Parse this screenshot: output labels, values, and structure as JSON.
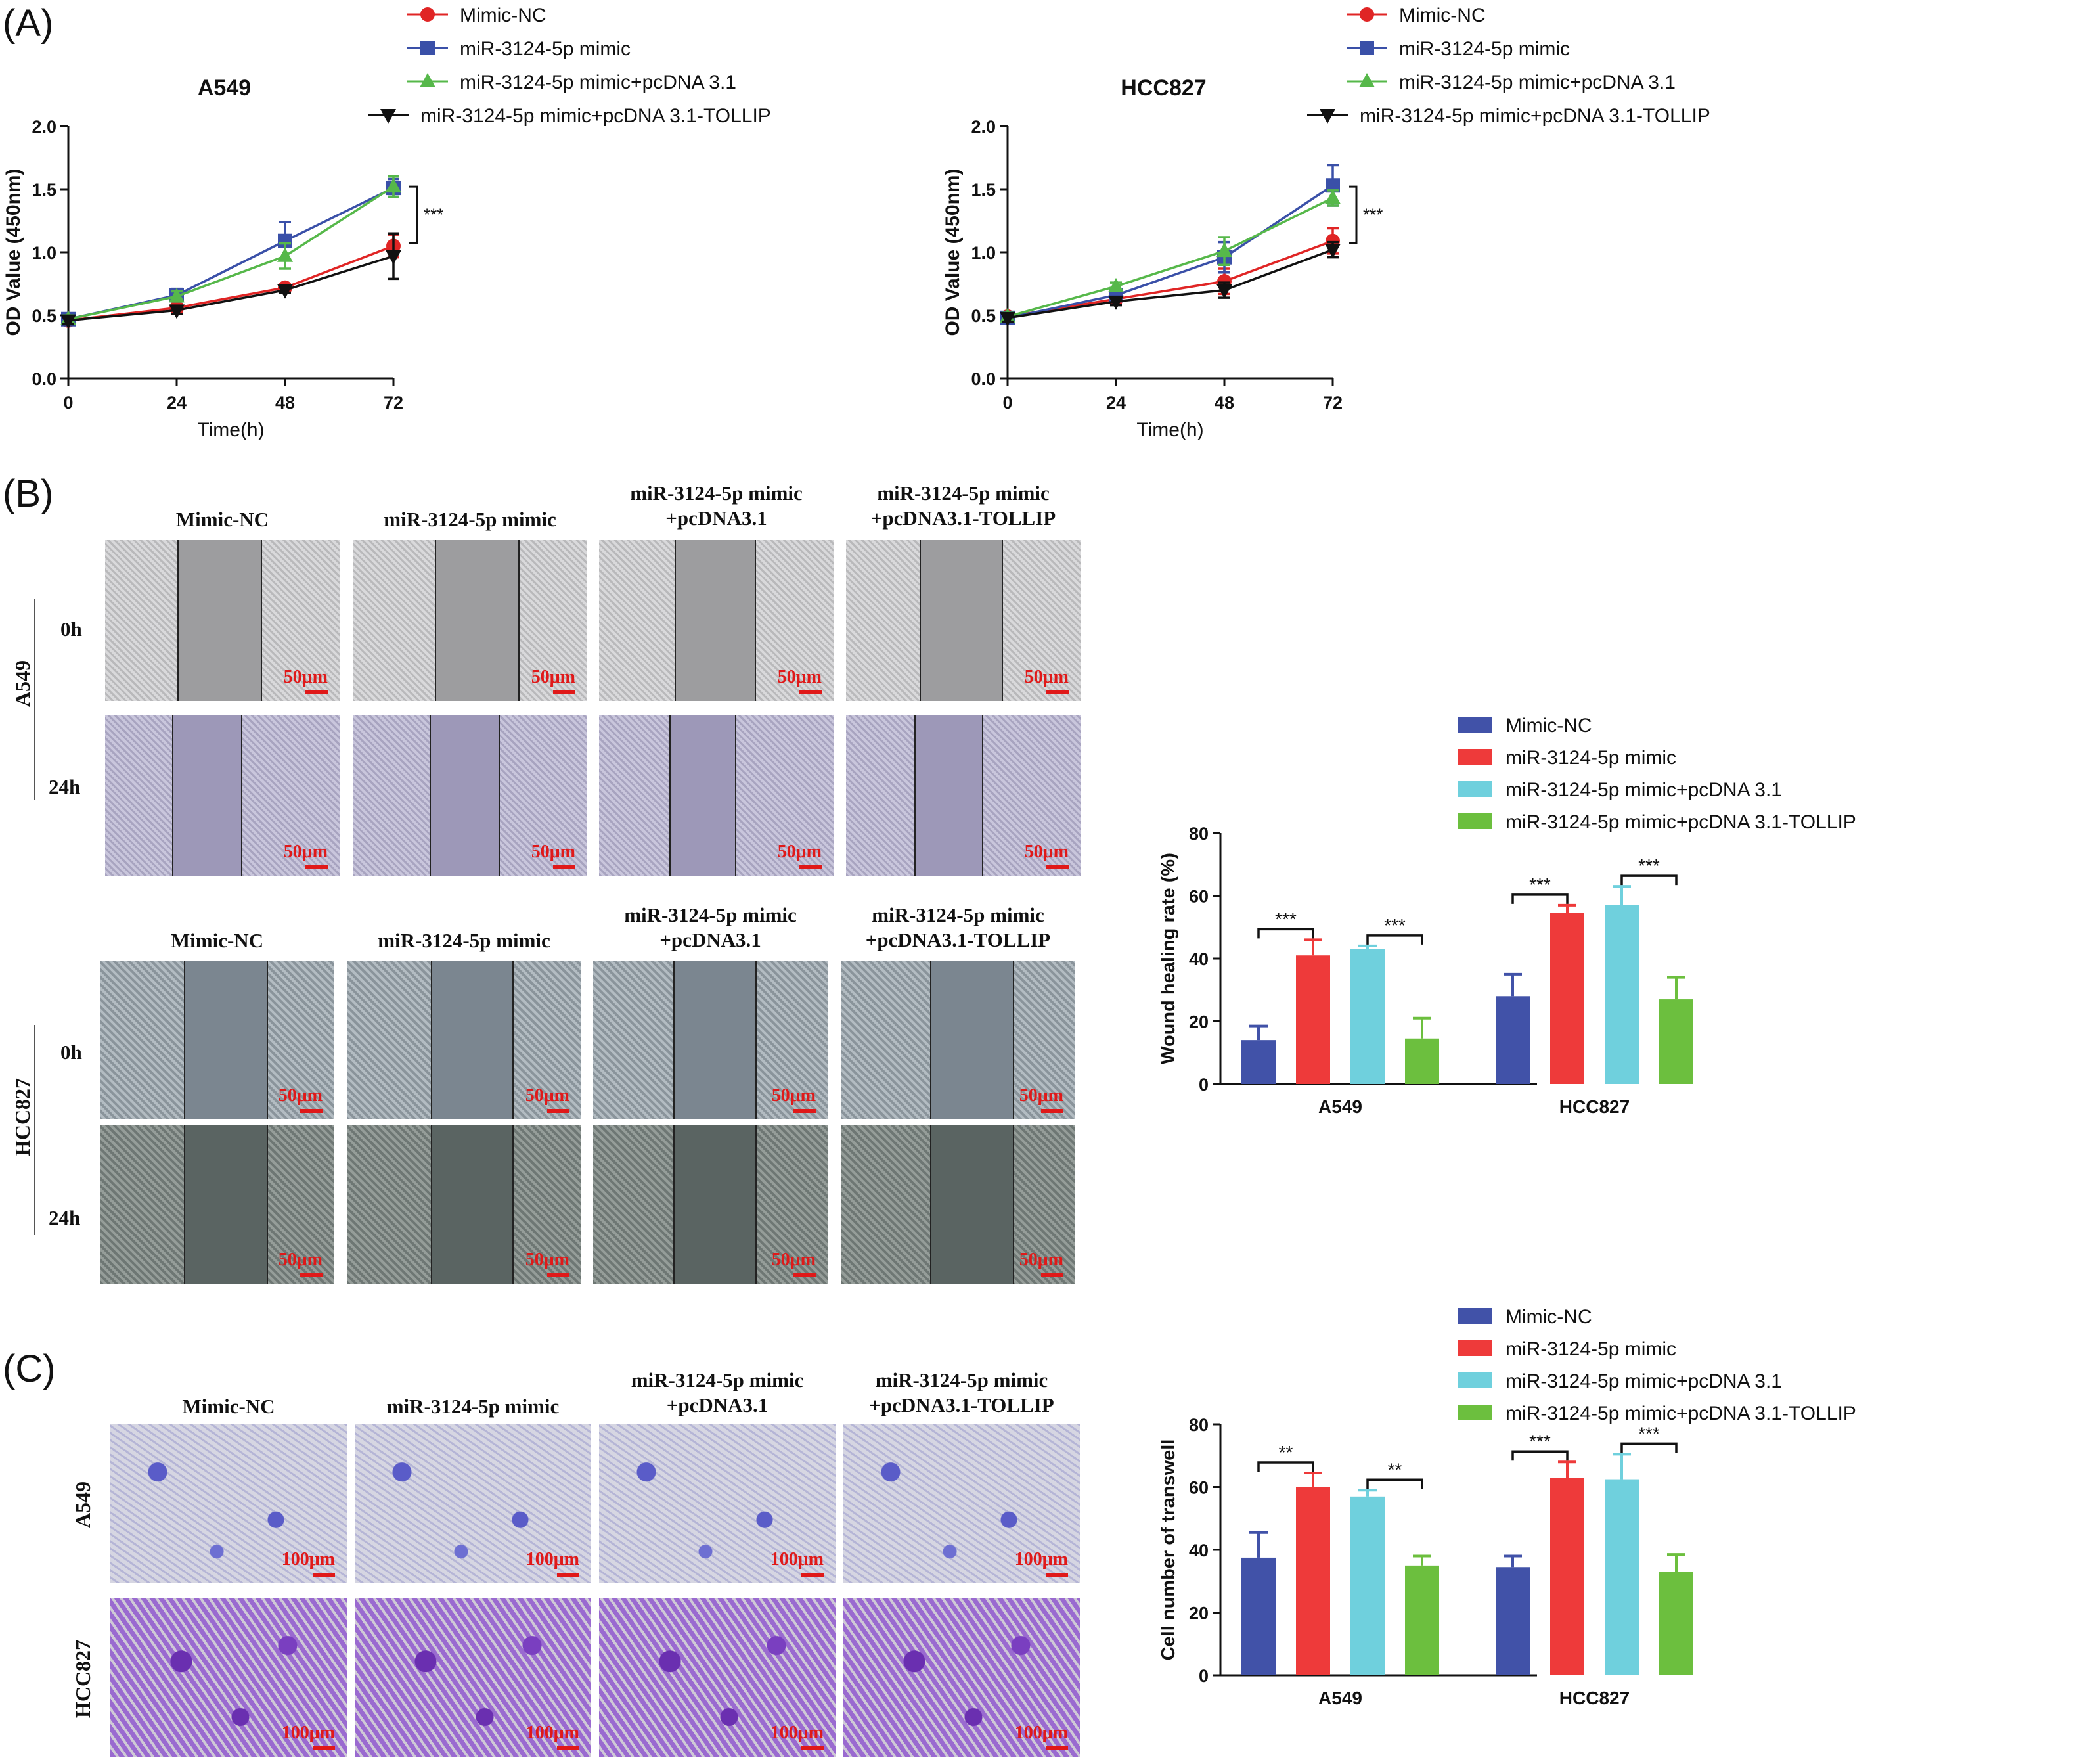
{
  "panels": {
    "a": "(A)",
    "b": "(B)",
    "c": "(C)"
  },
  "colors": {
    "mimic_nc_line": "#e02525",
    "mimic_line": "#3a50a8",
    "pcdna_line": "#56b84a",
    "tollip_line": "#111111",
    "bar_mimic_nc": "#4152a8",
    "bar_mimic": "#ee3a3a",
    "bar_pcdna": "#6fd0dd",
    "bar_tollip": "#6cbf3e",
    "scale_text": "#e01919"
  },
  "chart_data": [
    {
      "type": "line",
      "title": "A549",
      "xlabel": "Time(h)",
      "ylabel": "OD Value (450nm)",
      "x": [
        0,
        24,
        48,
        72
      ],
      "xticks": [
        "0",
        "24",
        "48",
        "72"
      ],
      "yticks": [
        "0.0",
        "0.5",
        "1.0",
        "1.5",
        "2.0"
      ],
      "ylim": [
        0,
        2.0
      ],
      "series": [
        {
          "name": "Mimic-NC",
          "values": [
            0.46,
            0.56,
            0.72,
            1.05
          ],
          "err": [
            0.03,
            0.03,
            0.02,
            0.09
          ],
          "marker": "circle"
        },
        {
          "name": "miR-3124-5p mimic",
          "values": [
            0.47,
            0.66,
            1.09,
            1.51
          ],
          "err": [
            0.03,
            0.05,
            0.15,
            0.07
          ],
          "marker": "square"
        },
        {
          "name": "miR-3124-5p mimic+pcDNA 3.1",
          "values": [
            0.47,
            0.65,
            0.97,
            1.52
          ],
          "err": [
            0.03,
            0.04,
            0.1,
            0.08
          ],
          "marker": "triangle"
        },
        {
          "name": "miR-3124-5p mimic+pcDNA 3.1-TOLLIP",
          "values": [
            0.46,
            0.54,
            0.7,
            0.97
          ],
          "err": [
            0.03,
            0.03,
            0.02,
            0.18
          ],
          "marker": "triangle-down"
        }
      ],
      "significance": "***"
    },
    {
      "type": "line",
      "title": "HCC827",
      "xlabel": "Time(h)",
      "ylabel": "OD Value (450nm)",
      "x": [
        0,
        24,
        48,
        72
      ],
      "xticks": [
        "0",
        "24",
        "48",
        "72"
      ],
      "yticks": [
        "0.0",
        "0.5",
        "1.0",
        "1.5",
        "2.0"
      ],
      "ylim": [
        0,
        2.0
      ],
      "series": [
        {
          "name": "Mimic-NC",
          "values": [
            0.49,
            0.63,
            0.77,
            1.09
          ],
          "err": [
            0.03,
            0.03,
            0.1,
            0.1
          ],
          "marker": "circle"
        },
        {
          "name": "miR-3124-5p mimic",
          "values": [
            0.48,
            0.66,
            0.96,
            1.53
          ],
          "err": [
            0.04,
            0.04,
            0.12,
            0.16
          ],
          "marker": "square"
        },
        {
          "name": "miR-3124-5p mimic+pcDNA 3.1",
          "values": [
            0.49,
            0.73,
            1.01,
            1.43
          ],
          "err": [
            0.03,
            0.03,
            0.11,
            0.06
          ],
          "marker": "triangle"
        },
        {
          "name": "miR-3124-5p mimic+pcDNA 3.1-TOLLIP",
          "values": [
            0.48,
            0.61,
            0.7,
            1.02
          ],
          "err": [
            0.03,
            0.03,
            0.06,
            0.06
          ],
          "marker": "triangle-down"
        }
      ],
      "significance": "***"
    },
    {
      "type": "bar",
      "ylabel": "Wound healing rate (%)",
      "categories": [
        "A549",
        "HCC827"
      ],
      "yticks": [
        "0",
        "20",
        "40",
        "60",
        "80"
      ],
      "ylim": [
        0,
        80
      ],
      "series": [
        {
          "name": "Mimic-NC",
          "values": [
            14,
            28
          ],
          "err": [
            4.5,
            7
          ]
        },
        {
          "name": "miR-3124-5p mimic",
          "values": [
            41,
            54.5
          ],
          "err": [
            5,
            2.5
          ]
        },
        {
          "name": "miR-3124-5p mimic+pcDNA 3.1",
          "values": [
            43,
            57
          ],
          "err": [
            1,
            6
          ]
        },
        {
          "name": "miR-3124-5p mimic+pcDNA 3.1-TOLLIP",
          "values": [
            14.5,
            27
          ],
          "err": [
            6.5,
            7
          ]
        }
      ],
      "significance": [
        {
          "category": 0,
          "from": 0,
          "to": 1,
          "label": "***"
        },
        {
          "category": 0,
          "from": 2,
          "to": 3,
          "label": "***"
        },
        {
          "category": 1,
          "from": 0,
          "to": 1,
          "label": "***"
        },
        {
          "category": 1,
          "from": 2,
          "to": 3,
          "label": "***"
        }
      ]
    },
    {
      "type": "bar",
      "ylabel": "Cell number of transwell",
      "categories": [
        "A549",
        "HCC827"
      ],
      "yticks": [
        "0",
        "20",
        "40",
        "60",
        "80"
      ],
      "ylim": [
        0,
        80
      ],
      "series": [
        {
          "name": "Mimic-NC",
          "values": [
            37.5,
            34.5
          ],
          "err": [
            8,
            3.5
          ]
        },
        {
          "name": "miR-3124-5p mimic",
          "values": [
            60,
            63
          ],
          "err": [
            4.5,
            5
          ]
        },
        {
          "name": "miR-3124-5p mimic+pcDNA 3.1",
          "values": [
            57,
            62.5
          ],
          "err": [
            2,
            8
          ]
        },
        {
          "name": "miR-3124-5p mimic+pcDNA 3.1-TOLLIP",
          "values": [
            35,
            33
          ],
          "err": [
            3,
            5.5
          ]
        }
      ],
      "significance": [
        {
          "category": 0,
          "from": 0,
          "to": 1,
          "label": "**"
        },
        {
          "category": 0,
          "from": 2,
          "to": 3,
          "label": "**"
        },
        {
          "category": 1,
          "from": 0,
          "to": 1,
          "label": "***"
        },
        {
          "category": 1,
          "from": 2,
          "to": 3,
          "label": "***"
        }
      ]
    }
  ],
  "wound": {
    "a549": {
      "cell_line": "A549",
      "headers": [
        [
          "Mimic-NC"
        ],
        [
          "miR-3124-5p mimic"
        ],
        [
          "miR-3124-5p mimic",
          "+pcDNA3.1"
        ],
        [
          "miR-3124-5p mimic",
          "+pcDNA3.1-TOLLIP"
        ]
      ],
      "rows": [
        "0h",
        "24h"
      ],
      "scale": "50μm"
    },
    "hcc827": {
      "cell_line": "HCC827",
      "headers": [
        [
          "Mimic-NC"
        ],
        [
          "miR-3124-5p mimic"
        ],
        [
          "miR-3124-5p mimic",
          "+pcDNA3.1"
        ],
        [
          "miR-3124-5p mimic",
          "+pcDNA3.1-TOLLIP"
        ]
      ],
      "rows": [
        "0h",
        "24h"
      ],
      "scale": "50μm"
    }
  },
  "transwell": {
    "headers": [
      [
        "Mimic-NC"
      ],
      [
        "miR-3124-5p mimic"
      ],
      [
        "miR-3124-5p mimic",
        "+pcDNA3.1"
      ],
      [
        "miR-3124-5p mimic",
        "+pcDNA3.1-TOLLIP"
      ]
    ],
    "rows": [
      "A549",
      "HCC827"
    ],
    "scale": "100μm"
  }
}
